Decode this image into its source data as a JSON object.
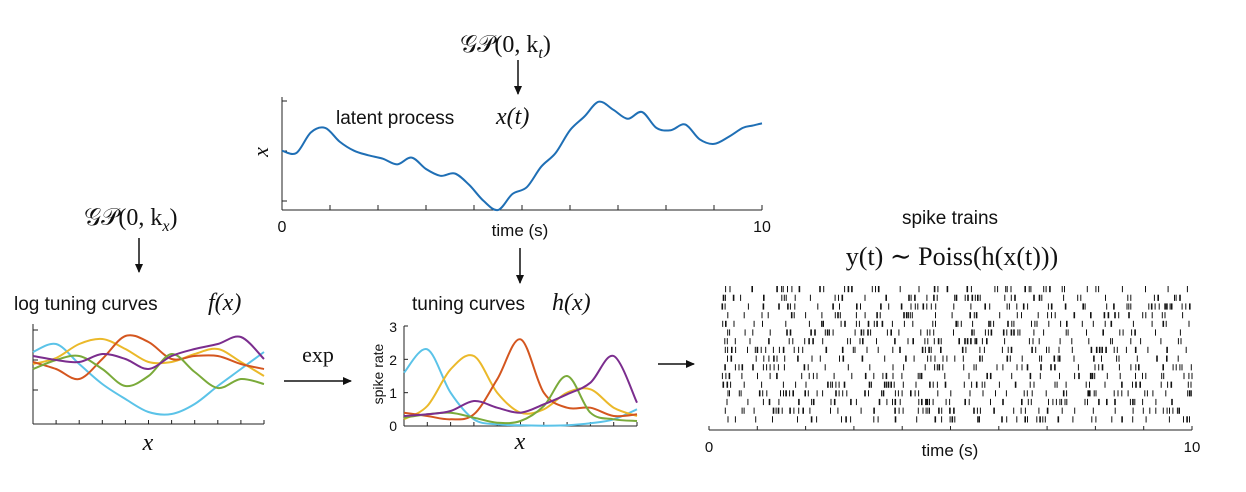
{
  "top_prior": {
    "label": "𝒢𝒫(0, k",
    "sub": "t",
    "close": ")"
  },
  "left_prior": {
    "label": "𝒢𝒫(0, k",
    "sub": "x",
    "close": ")"
  },
  "latent": {
    "title": "latent process",
    "title_math": "x(t)",
    "ylabel": "x",
    "xlabel": "time (s)",
    "xtick_start": "0",
    "xtick_end": "10"
  },
  "log_tuning": {
    "title": "log tuning curves",
    "title_math": "f(x)",
    "xlabel": "x"
  },
  "exp_label": "exp",
  "tuning": {
    "title": "tuning curves",
    "title_math": "h(x)",
    "ylabel": "spike rate",
    "xlabel": "x",
    "yticks": [
      "0",
      "1",
      "2",
      "3"
    ]
  },
  "spikes": {
    "title": "spike trains",
    "formula": "y(t) ∼ Poiss(h(x(t)))",
    "xlabel": "time (s)",
    "xtick_start": "0",
    "xtick_end": "10",
    "n_trains": 16
  },
  "colors": {
    "latent": "#1f6fb5",
    "blue": "#5bc3e8",
    "yellow": "#ebb92a",
    "orange": "#d4561f",
    "green": "#7aaa3a",
    "purple": "#7b2d8e"
  },
  "chart_data": [
    {
      "type": "line",
      "name": "latent",
      "x": [
        0,
        0.3,
        0.6,
        0.9,
        1.2,
        1.5,
        1.8,
        2.1,
        2.4,
        2.7,
        3.0,
        3.3,
        3.6,
        3.9,
        4.2,
        4.5,
        4.8,
        5.1,
        5.4,
        5.7,
        6.0,
        6.3,
        6.6,
        6.9,
        7.2,
        7.5,
        7.8,
        8.1,
        8.4,
        8.7,
        9.0,
        9.3,
        9.6,
        9.8,
        10
      ],
      "y": [
        0.52,
        0.5,
        0.68,
        0.72,
        0.6,
        0.52,
        0.48,
        0.45,
        0.4,
        0.46,
        0.36,
        0.3,
        0.32,
        0.22,
        0.08,
        0.0,
        0.14,
        0.2,
        0.38,
        0.5,
        0.7,
        0.82,
        0.95,
        0.88,
        0.8,
        0.86,
        0.72,
        0.7,
        0.75,
        0.62,
        0.58,
        0.64,
        0.72,
        0.74,
        0.76
      ],
      "xlim": [
        0,
        10
      ],
      "xlabel": "time (s)",
      "ylabel": "x"
    },
    {
      "type": "line",
      "name": "log tuning curves",
      "x": [
        0,
        0.1,
        0.2,
        0.3,
        0.4,
        0.5,
        0.6,
        0.7,
        0.8,
        0.9,
        1.0
      ],
      "series": [
        {
          "color": "blue",
          "values": [
            0.72,
            0.8,
            0.6,
            0.4,
            0.25,
            0.12,
            0.1,
            0.2,
            0.38,
            0.55,
            0.72
          ]
        },
        {
          "color": "yellow",
          "values": [
            0.6,
            0.66,
            0.8,
            0.85,
            0.75,
            0.62,
            0.62,
            0.7,
            0.75,
            0.62,
            0.48
          ]
        },
        {
          "color": "orange",
          "values": [
            0.62,
            0.55,
            0.45,
            0.65,
            0.88,
            0.82,
            0.65,
            0.68,
            0.68,
            0.6,
            0.55
          ]
        },
        {
          "color": "green",
          "values": [
            0.55,
            0.64,
            0.68,
            0.55,
            0.38,
            0.48,
            0.7,
            0.52,
            0.36,
            0.45,
            0.4
          ]
        },
        {
          "color": "purple",
          "values": [
            0.68,
            0.64,
            0.62,
            0.7,
            0.65,
            0.55,
            0.68,
            0.75,
            0.8,
            0.87,
            0.65
          ]
        }
      ],
      "xlabel": "x"
    },
    {
      "type": "line",
      "name": "tuning curves",
      "x": [
        0,
        0.1,
        0.2,
        0.3,
        0.4,
        0.5,
        0.6,
        0.7,
        0.8,
        0.9,
        1.0
      ],
      "series": [
        {
          "color": "blue",
          "values": [
            1.6,
            2.3,
            1.0,
            0.2,
            0.05,
            0.02,
            0.01,
            0.02,
            0.08,
            0.2,
            0.5
          ]
        },
        {
          "color": "yellow",
          "values": [
            0.2,
            0.6,
            1.7,
            2.1,
            1.0,
            0.4,
            0.5,
            1.0,
            1.1,
            0.55,
            0.3
          ]
        },
        {
          "color": "orange",
          "values": [
            0.4,
            0.3,
            0.2,
            0.35,
            1.4,
            2.6,
            1.0,
            0.55,
            0.55,
            0.3,
            0.35
          ]
        },
        {
          "color": "green",
          "values": [
            0.25,
            0.35,
            0.4,
            0.25,
            0.1,
            0.15,
            0.6,
            1.5,
            0.4,
            0.2,
            0.15
          ]
        },
        {
          "color": "purple",
          "values": [
            0.3,
            0.35,
            0.45,
            0.75,
            0.55,
            0.4,
            0.65,
            0.95,
            1.3,
            2.1,
            0.7
          ]
        }
      ],
      "ylim": [
        0,
        3
      ],
      "xlabel": "x",
      "ylabel": "spike rate"
    }
  ]
}
